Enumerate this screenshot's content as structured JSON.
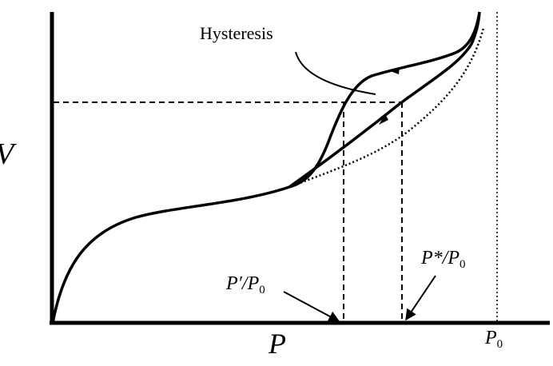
{
  "labels": {
    "hysteresis": "Hysteresis",
    "y_axis": "V",
    "x_axis": "P",
    "p_prime": {
      "main": "P′/P",
      "sub": "0"
    },
    "p_star": {
      "main": "P*/P",
      "sub": "0"
    },
    "p0": {
      "main": "P",
      "sub": "0"
    }
  }
}
